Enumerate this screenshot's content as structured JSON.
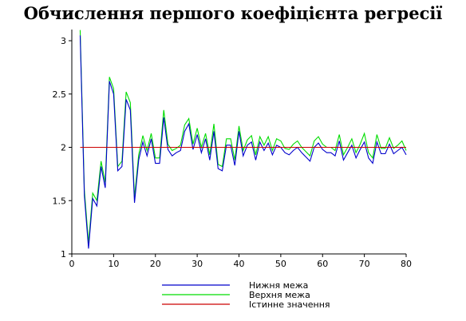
{
  "chart_data": {
    "type": "line",
    "title": "Обчислення першого коефіцієнта регресії",
    "xlabel": "",
    "ylabel": "",
    "xlim": [
      0,
      80
    ],
    "ylim": [
      1,
      3.1
    ],
    "x_ticks": [
      "0",
      "10",
      "20",
      "30",
      "40",
      "50",
      "60",
      "70",
      "80"
    ],
    "y_ticks": [
      "1",
      "1.5",
      "2",
      "2.5",
      "3"
    ],
    "grid": false,
    "legend_position": "bottom",
    "x": [
      2,
      3,
      4,
      5,
      6,
      7,
      8,
      9,
      10,
      11,
      12,
      13,
      14,
      15,
      16,
      17,
      18,
      19,
      20,
      21,
      22,
      23,
      24,
      25,
      26,
      27,
      28,
      29,
      30,
      31,
      32,
      33,
      34,
      35,
      36,
      37,
      38,
      39,
      40,
      41,
      42,
      43,
      44,
      45,
      46,
      47,
      48,
      49,
      50,
      51,
      52,
      53,
      54,
      55,
      56,
      57,
      58,
      59,
      60,
      61,
      62,
      63,
      64,
      65,
      66,
      67,
      68,
      69,
      70,
      71,
      72,
      73,
      74,
      75,
      76,
      77,
      78,
      79,
      80
    ],
    "series": [
      {
        "name": "Нижня межа",
        "color": "#0000cc",
        "values": [
          3.05,
          1.55,
          1.05,
          1.52,
          1.45,
          1.82,
          1.62,
          2.62,
          2.5,
          1.78,
          1.82,
          2.45,
          2.35,
          1.48,
          1.88,
          2.05,
          1.92,
          2.08,
          1.85,
          1.85,
          2.28,
          1.98,
          1.92,
          1.95,
          1.97,
          2.15,
          2.22,
          1.98,
          2.12,
          1.95,
          2.08,
          1.88,
          2.15,
          1.8,
          1.78,
          2.02,
          2.02,
          1.83,
          2.15,
          1.92,
          2.02,
          2.05,
          1.88,
          2.05,
          1.97,
          2.04,
          1.93,
          2.02,
          2.0,
          1.95,
          1.93,
          1.97,
          2.0,
          1.95,
          1.91,
          1.87,
          2.0,
          2.04,
          1.98,
          1.95,
          1.95,
          1.92,
          2.06,
          1.88,
          1.95,
          2.02,
          1.9,
          1.98,
          2.05,
          1.9,
          1.85,
          2.05,
          1.94,
          1.94,
          2.03,
          1.94,
          1.97,
          2.0,
          1.93
        ]
      },
      {
        "name": "Верхня межа",
        "color": "#00dd00",
        "values": [
          3.1,
          1.6,
          1.1,
          1.57,
          1.5,
          1.87,
          1.67,
          2.66,
          2.55,
          1.82,
          1.87,
          2.52,
          2.42,
          1.53,
          1.93,
          2.11,
          1.97,
          2.13,
          1.9,
          1.9,
          2.35,
          2.03,
          1.97,
          1.99,
          2.02,
          2.21,
          2.27,
          2.03,
          2.18,
          2.0,
          2.13,
          1.93,
          2.22,
          1.84,
          1.82,
          2.08,
          2.08,
          1.88,
          2.2,
          1.97,
          2.07,
          2.11,
          1.93,
          2.1,
          2.02,
          2.1,
          1.97,
          2.08,
          2.06,
          1.99,
          1.98,
          2.03,
          2.06,
          2.0,
          1.96,
          1.92,
          2.06,
          2.1,
          2.03,
          2.0,
          2.0,
          1.97,
          2.12,
          1.93,
          2.0,
          2.08,
          1.95,
          2.03,
          2.13,
          1.95,
          1.9,
          2.12,
          1.99,
          1.99,
          2.09,
          1.99,
          2.02,
          2.06,
          1.97
        ]
      },
      {
        "name": "Істинне значення",
        "color": "#cc0000",
        "values": [
          2,
          2,
          2,
          2,
          2,
          2,
          2,
          2,
          2,
          2,
          2,
          2,
          2,
          2,
          2,
          2,
          2,
          2,
          2,
          2,
          2,
          2,
          2,
          2,
          2,
          2,
          2,
          2,
          2,
          2,
          2,
          2,
          2,
          2,
          2,
          2,
          2,
          2,
          2,
          2,
          2,
          2,
          2,
          2,
          2,
          2,
          2,
          2,
          2,
          2,
          2,
          2,
          2,
          2,
          2,
          2,
          2,
          2,
          2,
          2,
          2,
          2,
          2,
          2,
          2,
          2,
          2,
          2,
          2,
          2,
          2,
          2,
          2,
          2,
          2,
          2,
          2,
          2,
          2
        ]
      }
    ]
  }
}
